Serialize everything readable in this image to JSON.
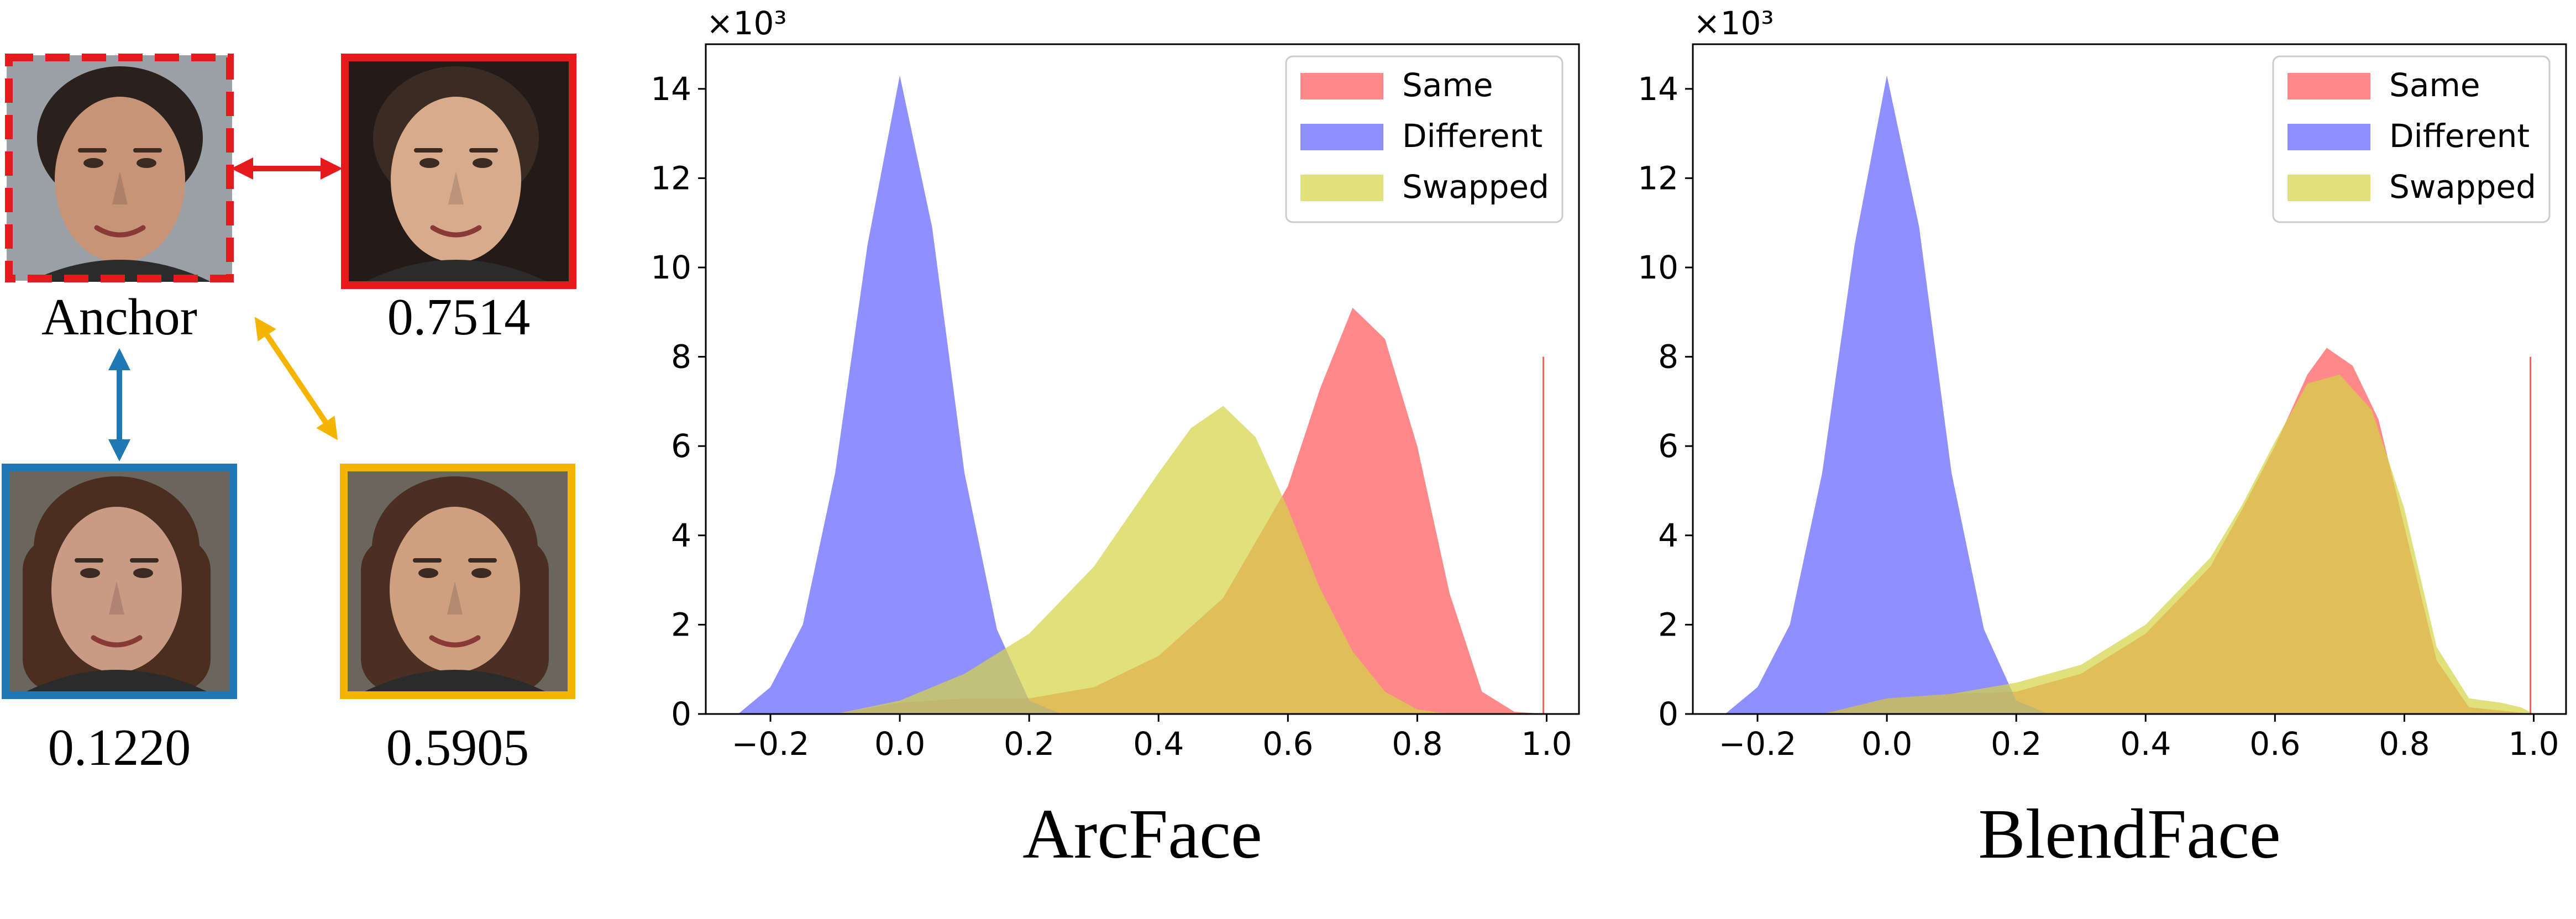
{
  "faces": [
    {
      "id": "anchor",
      "label": "Anchor",
      "frame_color": "#e41a1c",
      "dashed": true,
      "skin": "#c89478",
      "hair": "#2a211c"
    },
    {
      "id": "same",
      "label": "0.7514",
      "frame_color": "#e41a1c",
      "dashed": false,
      "skin": "#d9ab8d",
      "hair": "#3a2c22"
    },
    {
      "id": "different",
      "label": "0.1220",
      "frame_color": "#1f77b4",
      "dashed": false,
      "skin": "#c99a84",
      "hair": "#4a2e20"
    },
    {
      "id": "swapped",
      "label": "0.5905",
      "frame_color": "#f5b400",
      "dashed": false,
      "skin": "#cfa080",
      "hair": "#4a2f22"
    }
  ],
  "arrows": [
    {
      "from": "anchor",
      "to": "same",
      "color": "#e41a1c"
    },
    {
      "from": "anchor",
      "to": "different",
      "color": "#1f77b4"
    },
    {
      "from": "anchor",
      "to": "swapped",
      "color": "#f5b400"
    }
  ],
  "chart_data": [
    {
      "type": "area",
      "title": "ArcFace",
      "ylim": [
        0,
        15
      ],
      "xlim": [
        -0.3,
        1.05
      ],
      "xticks": [
        "−0.2",
        "0.0",
        "0.2",
        "0.4",
        "0.6",
        "0.8",
        "1.0"
      ],
      "xtick_values": [
        -0.2,
        0.0,
        0.2,
        0.4,
        0.6,
        0.8,
        1.0
      ],
      "yticks": [
        "0",
        "2",
        "4",
        "6",
        "8",
        "10",
        "12",
        "14"
      ],
      "ytick_values": [
        0,
        2,
        4,
        6,
        8,
        10,
        12,
        14
      ],
      "yexponent": "×10³",
      "legend_position": "top-right",
      "series": [
        {
          "name": "Same",
          "color": "#ff5a5a",
          "x": [
            -0.1,
            0.0,
            0.1,
            0.2,
            0.3,
            0.4,
            0.5,
            0.6,
            0.65,
            0.7,
            0.75,
            0.8,
            0.85,
            0.9,
            0.95,
            1.0
          ],
          "values": [
            0,
            0.25,
            0.35,
            0.35,
            0.6,
            1.3,
            2.6,
            5.1,
            7.3,
            9.1,
            8.4,
            6.0,
            2.7,
            0.5,
            0.05,
            0
          ]
        },
        {
          "name": "Different",
          "color": "#6464ff",
          "x": [
            -0.25,
            -0.2,
            -0.15,
            -0.1,
            -0.05,
            0.0,
            0.05,
            0.1,
            0.15,
            0.2,
            0.25
          ],
          "values": [
            0,
            0.6,
            2.0,
            5.4,
            10.5,
            14.3,
            10.9,
            5.4,
            1.9,
            0.3,
            0
          ]
        },
        {
          "name": "Swapped",
          "color": "#d4d44a",
          "x": [
            -0.1,
            0.0,
            0.1,
            0.2,
            0.3,
            0.4,
            0.45,
            0.5,
            0.55,
            0.6,
            0.65,
            0.7,
            0.75,
            0.8,
            0.85
          ],
          "values": [
            0,
            0.3,
            0.9,
            1.8,
            3.3,
            5.4,
            6.4,
            6.9,
            6.2,
            4.6,
            2.8,
            1.4,
            0.5,
            0.1,
            0
          ]
        }
      ]
    },
    {
      "type": "area",
      "title": "BlendFace",
      "ylim": [
        0,
        15
      ],
      "xlim": [
        -0.3,
        1.05
      ],
      "xticks": [
        "−0.2",
        "0.0",
        "0.2",
        "0.4",
        "0.6",
        "0.8",
        "1.0"
      ],
      "xtick_values": [
        -0.2,
        0.0,
        0.2,
        0.4,
        0.6,
        0.8,
        1.0
      ],
      "yticks": [
        "0",
        "2",
        "4",
        "6",
        "8",
        "10",
        "12",
        "14"
      ],
      "ytick_values": [
        0,
        2,
        4,
        6,
        8,
        10,
        12,
        14
      ],
      "yexponent": "×10³",
      "legend_position": "top-right",
      "series": [
        {
          "name": "Same",
          "color": "#ff5a5a",
          "x": [
            -0.1,
            0.0,
            0.1,
            0.2,
            0.3,
            0.4,
            0.5,
            0.55,
            0.6,
            0.65,
            0.68,
            0.72,
            0.76,
            0.8,
            0.85,
            0.9,
            1.0
          ],
          "values": [
            0,
            0.35,
            0.45,
            0.5,
            0.9,
            1.8,
            3.3,
            4.6,
            6.0,
            7.6,
            8.2,
            7.8,
            6.6,
            4.2,
            1.2,
            0.15,
            0
          ]
        },
        {
          "name": "Different",
          "color": "#6464ff",
          "x": [
            -0.25,
            -0.2,
            -0.15,
            -0.1,
            -0.05,
            0.0,
            0.05,
            0.1,
            0.15,
            0.2,
            0.25
          ],
          "values": [
            0,
            0.6,
            2.0,
            5.4,
            10.5,
            14.3,
            10.9,
            5.4,
            1.9,
            0.3,
            0
          ]
        },
        {
          "name": "Swapped",
          "color": "#d4d44a",
          "x": [
            -0.1,
            0.0,
            0.1,
            0.2,
            0.3,
            0.4,
            0.5,
            0.55,
            0.6,
            0.65,
            0.7,
            0.75,
            0.8,
            0.85,
            0.9,
            0.95,
            0.98,
            1.0
          ],
          "values": [
            0,
            0.35,
            0.45,
            0.7,
            1.1,
            2.0,
            3.5,
            4.7,
            6.1,
            7.4,
            7.6,
            6.8,
            4.6,
            1.5,
            0.35,
            0.25,
            0.15,
            0
          ]
        }
      ]
    }
  ]
}
